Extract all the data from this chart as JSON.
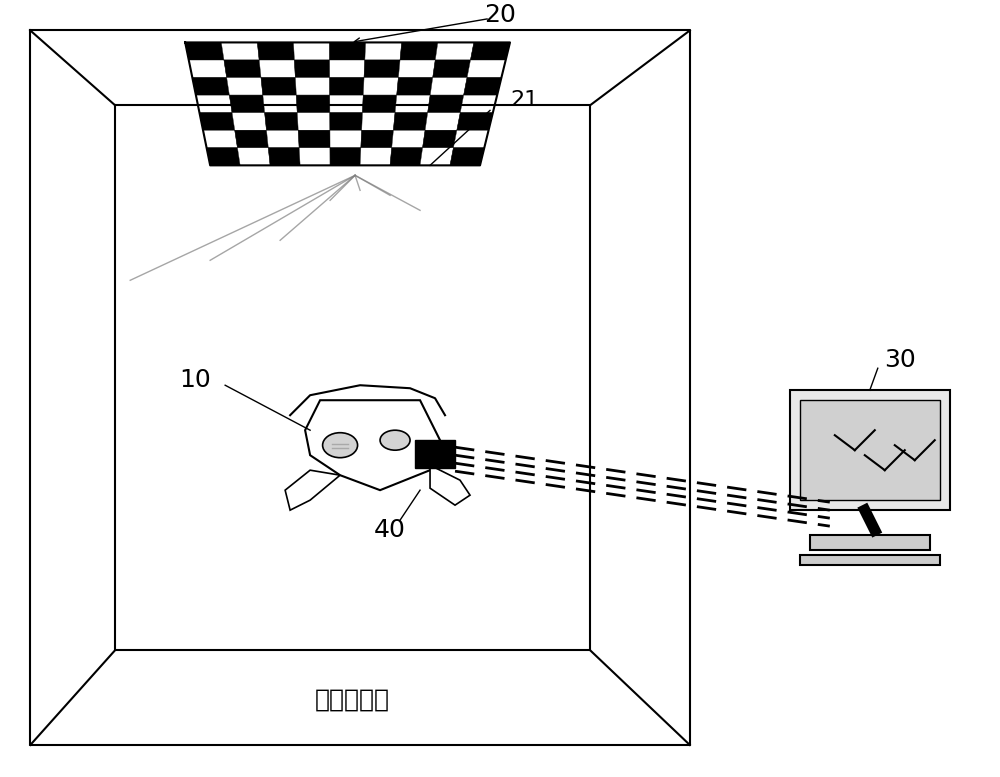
{
  "bg_color": "#ffffff",
  "line_color": "#000000",
  "label_20": "20",
  "label_21": "21",
  "label_10": "10",
  "label_30": "30",
  "label_40": "40",
  "room_label": "目标定位室",
  "fig_width": 10.0,
  "fig_height": 7.77
}
